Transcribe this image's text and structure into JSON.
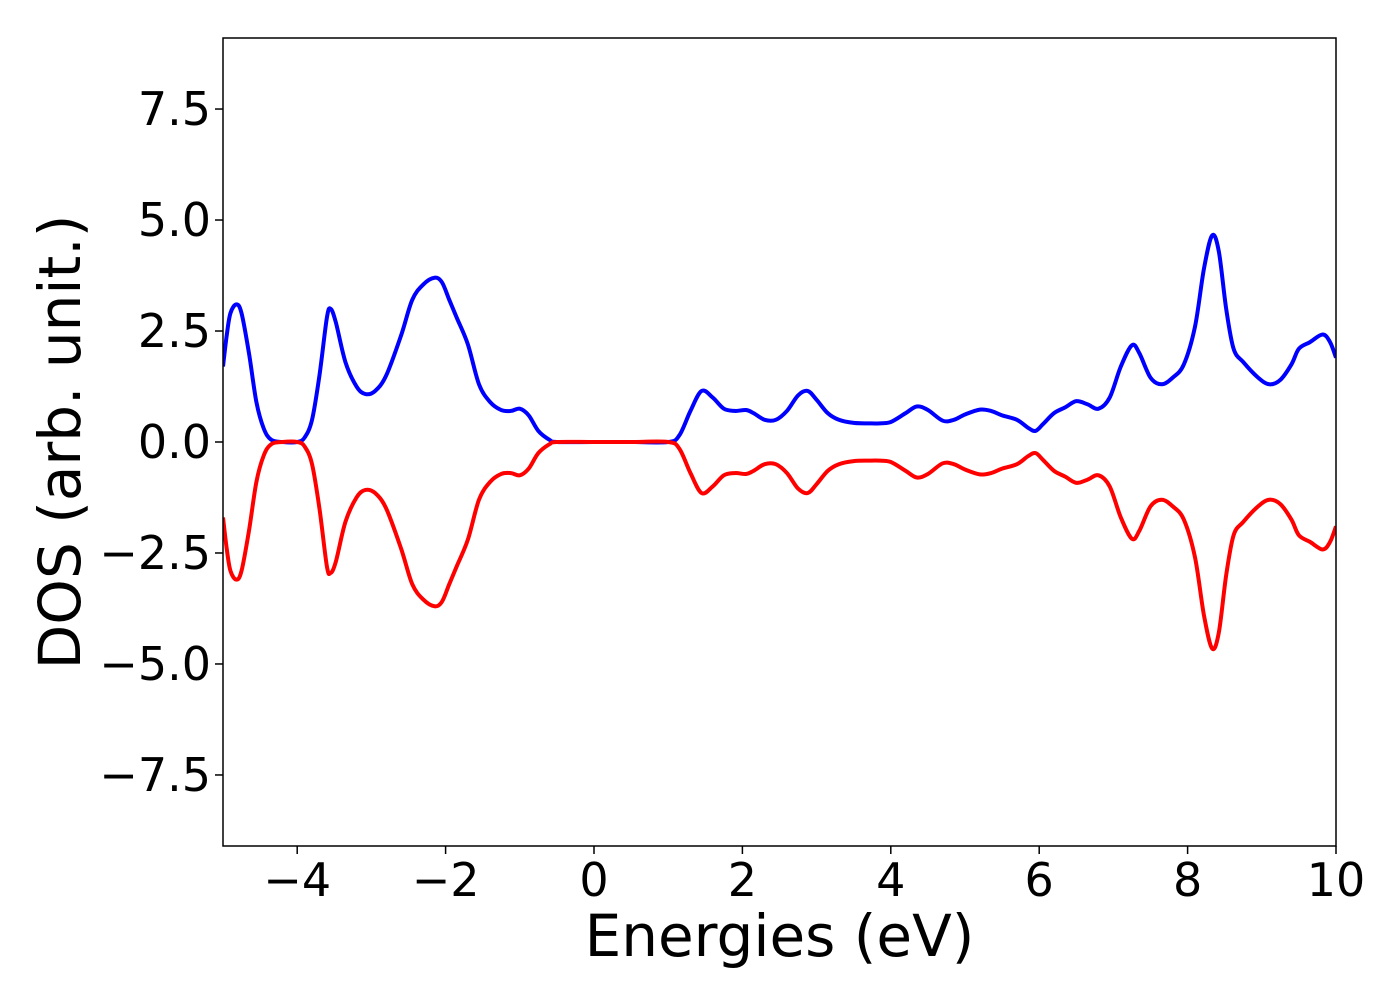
{
  "chart_data": {
    "type": "line",
    "title": "",
    "xlabel": "Energies (eV)",
    "ylabel": "DOS (arb. unit.)",
    "xlim": [
      -5,
      10
    ],
    "ylim": [
      -9.1,
      9.1
    ],
    "x_ticks": [
      -4,
      -2,
      0,
      2,
      4,
      6,
      8,
      10
    ],
    "x_tick_labels": [
      "−4",
      "−2",
      "0",
      "2",
      "4",
      "6",
      "8",
      "10"
    ],
    "y_ticks": [
      7.5,
      5.0,
      2.5,
      0.0,
      -2.5,
      -5.0,
      -7.5
    ],
    "y_tick_labels": [
      "7.5",
      "5.0",
      "2.5",
      "0.0",
      "−2.5",
      "−5.0",
      "−7.5"
    ],
    "grid": false,
    "legend": "none",
    "series": [
      {
        "color": "#0000ff",
        "points": [
          [
            -5.0,
            1.7
          ],
          [
            -4.95,
            2.4
          ],
          [
            -4.9,
            2.9
          ],
          [
            -4.82,
            3.1
          ],
          [
            -4.75,
            2.9
          ],
          [
            -4.65,
            2.0
          ],
          [
            -4.55,
            0.9
          ],
          [
            -4.45,
            0.3
          ],
          [
            -4.35,
            0.05
          ],
          [
            -4.2,
            0.0
          ],
          [
            -4.0,
            0.0
          ],
          [
            -3.9,
            0.1
          ],
          [
            -3.8,
            0.5
          ],
          [
            -3.7,
            1.5
          ],
          [
            -3.6,
            2.8
          ],
          [
            -3.55,
            3.0
          ],
          [
            -3.48,
            2.7
          ],
          [
            -3.35,
            1.8
          ],
          [
            -3.2,
            1.25
          ],
          [
            -3.08,
            1.08
          ],
          [
            -2.95,
            1.15
          ],
          [
            -2.8,
            1.5
          ],
          [
            -2.6,
            2.4
          ],
          [
            -2.45,
            3.2
          ],
          [
            -2.3,
            3.55
          ],
          [
            -2.15,
            3.7
          ],
          [
            -2.05,
            3.6
          ],
          [
            -1.95,
            3.2
          ],
          [
            -1.85,
            2.8
          ],
          [
            -1.7,
            2.2
          ],
          [
            -1.55,
            1.3
          ],
          [
            -1.4,
            0.9
          ],
          [
            -1.25,
            0.72
          ],
          [
            -1.12,
            0.7
          ],
          [
            -1.0,
            0.75
          ],
          [
            -0.88,
            0.6
          ],
          [
            -0.75,
            0.25
          ],
          [
            -0.6,
            0.05
          ],
          [
            -0.5,
            0.0
          ],
          [
            0.0,
            0.0
          ],
          [
            0.5,
            0.0
          ],
          [
            1.0,
            0.0
          ],
          [
            1.15,
            0.15
          ],
          [
            1.3,
            0.7
          ],
          [
            1.45,
            1.15
          ],
          [
            1.6,
            1.0
          ],
          [
            1.75,
            0.75
          ],
          [
            1.9,
            0.7
          ],
          [
            2.05,
            0.72
          ],
          [
            2.15,
            0.65
          ],
          [
            2.3,
            0.5
          ],
          [
            2.45,
            0.5
          ],
          [
            2.6,
            0.7
          ],
          [
            2.75,
            1.05
          ],
          [
            2.88,
            1.15
          ],
          [
            3.0,
            0.95
          ],
          [
            3.15,
            0.65
          ],
          [
            3.3,
            0.5
          ],
          [
            3.5,
            0.43
          ],
          [
            3.7,
            0.42
          ],
          [
            3.85,
            0.42
          ],
          [
            4.0,
            0.45
          ],
          [
            4.2,
            0.65
          ],
          [
            4.35,
            0.8
          ],
          [
            4.5,
            0.72
          ],
          [
            4.7,
            0.48
          ],
          [
            4.85,
            0.5
          ],
          [
            5.0,
            0.62
          ],
          [
            5.2,
            0.73
          ],
          [
            5.35,
            0.7
          ],
          [
            5.5,
            0.6
          ],
          [
            5.7,
            0.5
          ],
          [
            5.85,
            0.32
          ],
          [
            5.95,
            0.25
          ],
          [
            6.05,
            0.4
          ],
          [
            6.2,
            0.65
          ],
          [
            6.35,
            0.78
          ],
          [
            6.5,
            0.92
          ],
          [
            6.65,
            0.85
          ],
          [
            6.8,
            0.75
          ],
          [
            6.95,
            1.0
          ],
          [
            7.1,
            1.7
          ],
          [
            7.25,
            2.18
          ],
          [
            7.35,
            2.0
          ],
          [
            7.5,
            1.45
          ],
          [
            7.65,
            1.3
          ],
          [
            7.8,
            1.45
          ],
          [
            7.95,
            1.75
          ],
          [
            8.1,
            2.6
          ],
          [
            8.22,
            3.9
          ],
          [
            8.33,
            4.65
          ],
          [
            8.42,
            4.3
          ],
          [
            8.52,
            3.0
          ],
          [
            8.62,
            2.1
          ],
          [
            8.75,
            1.8
          ],
          [
            8.95,
            1.45
          ],
          [
            9.1,
            1.3
          ],
          [
            9.25,
            1.4
          ],
          [
            9.4,
            1.75
          ],
          [
            9.5,
            2.1
          ],
          [
            9.65,
            2.25
          ],
          [
            9.82,
            2.42
          ],
          [
            9.92,
            2.25
          ],
          [
            10.0,
            1.9
          ]
        ]
      },
      {
        "color": "#ff0000",
        "points": [
          [
            -5.0,
            -1.7
          ],
          [
            -4.95,
            -2.4
          ],
          [
            -4.9,
            -2.9
          ],
          [
            -4.82,
            -3.1
          ],
          [
            -4.75,
            -2.9
          ],
          [
            -4.65,
            -2.0
          ],
          [
            -4.55,
            -0.9
          ],
          [
            -4.45,
            -0.3
          ],
          [
            -4.35,
            -0.05
          ],
          [
            -4.2,
            0.0
          ],
          [
            -4.0,
            0.0
          ],
          [
            -3.9,
            -0.1
          ],
          [
            -3.8,
            -0.5
          ],
          [
            -3.7,
            -1.5
          ],
          [
            -3.6,
            -2.8
          ],
          [
            -3.55,
            -2.95
          ],
          [
            -3.48,
            -2.7
          ],
          [
            -3.35,
            -1.8
          ],
          [
            -3.2,
            -1.25
          ],
          [
            -3.08,
            -1.08
          ],
          [
            -2.95,
            -1.15
          ],
          [
            -2.8,
            -1.5
          ],
          [
            -2.6,
            -2.4
          ],
          [
            -2.45,
            -3.2
          ],
          [
            -2.3,
            -3.55
          ],
          [
            -2.15,
            -3.7
          ],
          [
            -2.05,
            -3.6
          ],
          [
            -1.95,
            -3.2
          ],
          [
            -1.85,
            -2.8
          ],
          [
            -1.7,
            -2.2
          ],
          [
            -1.55,
            -1.3
          ],
          [
            -1.4,
            -0.9
          ],
          [
            -1.25,
            -0.72
          ],
          [
            -1.12,
            -0.7
          ],
          [
            -1.0,
            -0.75
          ],
          [
            -0.88,
            -0.6
          ],
          [
            -0.75,
            -0.25
          ],
          [
            -0.6,
            -0.05
          ],
          [
            -0.5,
            0.0
          ],
          [
            0.0,
            0.0
          ],
          [
            0.5,
            0.0
          ],
          [
            1.0,
            0.0
          ],
          [
            1.15,
            -0.15
          ],
          [
            1.3,
            -0.7
          ],
          [
            1.45,
            -1.15
          ],
          [
            1.6,
            -1.0
          ],
          [
            1.75,
            -0.75
          ],
          [
            1.9,
            -0.7
          ],
          [
            2.05,
            -0.72
          ],
          [
            2.15,
            -0.65
          ],
          [
            2.3,
            -0.5
          ],
          [
            2.45,
            -0.5
          ],
          [
            2.6,
            -0.7
          ],
          [
            2.75,
            -1.05
          ],
          [
            2.88,
            -1.15
          ],
          [
            3.0,
            -0.95
          ],
          [
            3.15,
            -0.65
          ],
          [
            3.3,
            -0.5
          ],
          [
            3.5,
            -0.43
          ],
          [
            3.7,
            -0.42
          ],
          [
            3.85,
            -0.42
          ],
          [
            4.0,
            -0.45
          ],
          [
            4.2,
            -0.65
          ],
          [
            4.35,
            -0.8
          ],
          [
            4.5,
            -0.72
          ],
          [
            4.7,
            -0.48
          ],
          [
            4.85,
            -0.5
          ],
          [
            5.0,
            -0.62
          ],
          [
            5.2,
            -0.73
          ],
          [
            5.35,
            -0.7
          ],
          [
            5.5,
            -0.6
          ],
          [
            5.7,
            -0.5
          ],
          [
            5.85,
            -0.32
          ],
          [
            5.95,
            -0.25
          ],
          [
            6.05,
            -0.4
          ],
          [
            6.2,
            -0.65
          ],
          [
            6.35,
            -0.78
          ],
          [
            6.5,
            -0.92
          ],
          [
            6.65,
            -0.85
          ],
          [
            6.8,
            -0.75
          ],
          [
            6.95,
            -1.0
          ],
          [
            7.1,
            -1.7
          ],
          [
            7.25,
            -2.18
          ],
          [
            7.35,
            -2.0
          ],
          [
            7.5,
            -1.45
          ],
          [
            7.65,
            -1.3
          ],
          [
            7.8,
            -1.45
          ],
          [
            7.95,
            -1.75
          ],
          [
            8.1,
            -2.6
          ],
          [
            8.22,
            -3.9
          ],
          [
            8.33,
            -4.65
          ],
          [
            8.42,
            -4.3
          ],
          [
            8.52,
            -3.0
          ],
          [
            8.62,
            -2.1
          ],
          [
            8.75,
            -1.8
          ],
          [
            8.95,
            -1.45
          ],
          [
            9.1,
            -1.3
          ],
          [
            9.25,
            -1.4
          ],
          [
            9.4,
            -1.75
          ],
          [
            9.5,
            -2.1
          ],
          [
            9.65,
            -2.25
          ],
          [
            9.82,
            -2.42
          ],
          [
            9.92,
            -2.25
          ],
          [
            10.0,
            -1.9
          ]
        ]
      }
    ]
  }
}
